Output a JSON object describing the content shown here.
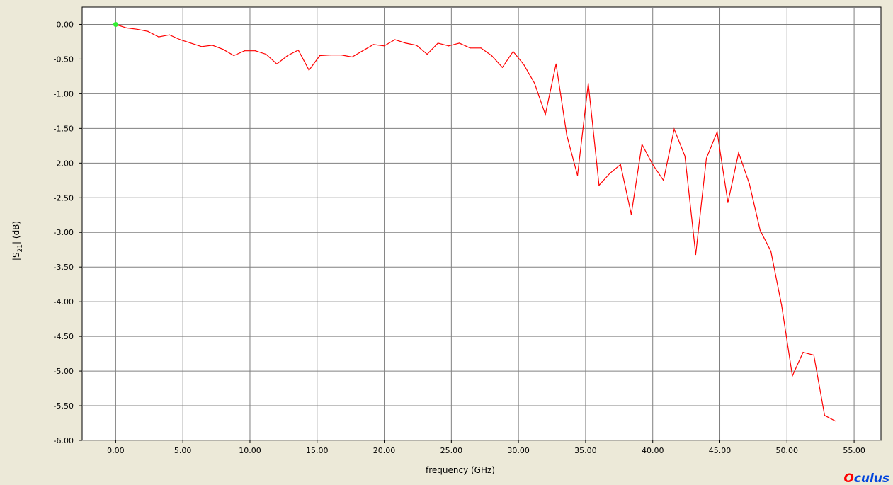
{
  "chart_data": {
    "type": "line",
    "xlabel": "frequency (GHz)",
    "ylabel": {
      "prefix": "|S",
      "subscript": "21",
      "suffix": "| (dB)"
    },
    "xlim": [
      -2.5,
      57.0
    ],
    "ylim": [
      -6.0,
      0.25
    ],
    "x_ticks": [
      0,
      5,
      10,
      15,
      20,
      25,
      30,
      35,
      40,
      45,
      50,
      55
    ],
    "x_tick_labels": [
      "0.00",
      "5.00",
      "10.00",
      "15.00",
      "20.00",
      "25.00",
      "30.00",
      "35.00",
      "40.00",
      "45.00",
      "50.00",
      "55.00"
    ],
    "y_ticks": [
      0,
      -0.5,
      -1.0,
      -1.5,
      -2.0,
      -2.5,
      -3.0,
      -3.5,
      -4.0,
      -4.5,
      -5.0,
      -5.5,
      -6.0
    ],
    "y_tick_labels": [
      "0.00",
      "-0.50",
      "-1.00",
      "-1.50",
      "-2.00",
      "-2.50",
      "-3.00",
      "-3.50",
      "-4.00",
      "-4.50",
      "-5.00",
      "-5.50",
      "-6.00"
    ],
    "grid": true,
    "series": [
      {
        "color": "#FF0000",
        "x": [
          0,
          0.8,
          1.6,
          2.4,
          3.2,
          4.0,
          4.8,
          5.6,
          6.4,
          7.2,
          8.0,
          8.8,
          9.6,
          10.4,
          11.2,
          12.0,
          12.8,
          13.6,
          14.4,
          15.2,
          16.0,
          16.8,
          17.6,
          18.4,
          19.2,
          20.0,
          20.8,
          21.6,
          22.4,
          23.2,
          24.0,
          24.8,
          25.6,
          26.4,
          27.2,
          28.0,
          28.8,
          29.6,
          30.4,
          31.2,
          32.0,
          32.8,
          33.6,
          34.4,
          35.2,
          36.0,
          36.8,
          37.6,
          38.4,
          39.2,
          40.0,
          40.8,
          41.6,
          42.4,
          43.2,
          44.0,
          44.8,
          45.6,
          46.4,
          47.2,
          48.0,
          48.8,
          49.6,
          50.4,
          51.2,
          52.0,
          52.8,
          53.6
        ],
        "y": [
          0.0,
          -0.05,
          -0.07,
          -0.1,
          -0.18,
          -0.15,
          -0.22,
          -0.27,
          -0.32,
          -0.3,
          -0.36,
          -0.45,
          -0.38,
          -0.38,
          -0.43,
          -0.57,
          -0.45,
          -0.37,
          -0.66,
          -0.45,
          -0.44,
          -0.44,
          -0.47,
          -0.38,
          -0.29,
          -0.31,
          -0.22,
          -0.27,
          -0.3,
          -0.43,
          -0.27,
          -0.31,
          -0.27,
          -0.34,
          -0.34,
          -0.45,
          -0.62,
          -0.39,
          -0.58,
          -0.85,
          -1.3,
          -0.57,
          -1.6,
          -2.18,
          -0.85,
          -2.32,
          -2.15,
          -2.02,
          -2.74,
          -1.73,
          -2.02,
          -2.25,
          -1.51,
          -1.9,
          -3.32,
          -1.93,
          -1.55,
          -2.57,
          -1.85,
          -2.3,
          -2.97,
          -3.27,
          -4.05,
          -5.07,
          -4.73,
          -4.77,
          -5.64,
          -5.72
        ]
      }
    ],
    "start_marker_color": "#33EE33"
  },
  "brand": {
    "first_letter": "O",
    "rest": "culus",
    "first_color": "#FF0000",
    "rest_color": "#0044DD"
  }
}
